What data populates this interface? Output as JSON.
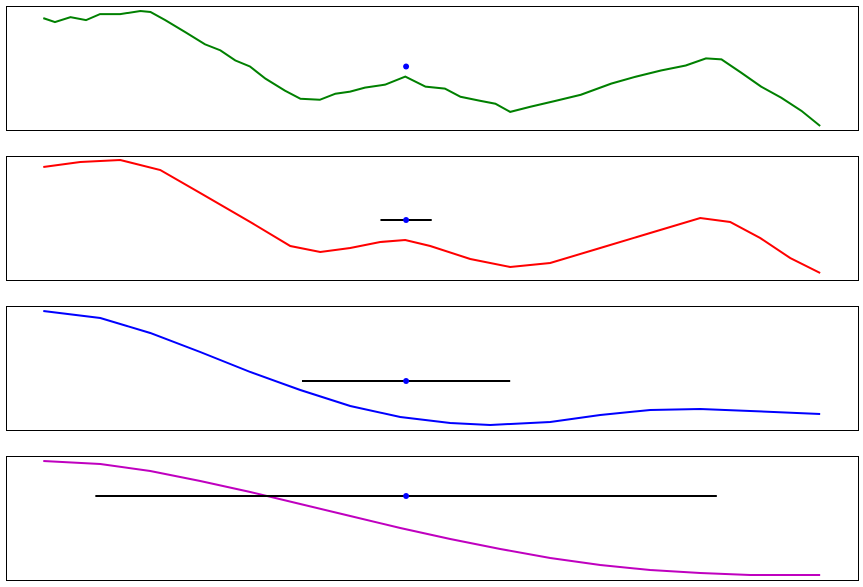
{
  "chart_data": [
    {
      "type": "line",
      "xlim": [
        -4.8,
        105
      ],
      "ylim": [
        0,
        10
      ],
      "x": [
        0,
        1.5,
        3.5,
        5.5,
        7.3,
        9.9,
        12.5,
        13.8,
        15.7,
        18.3,
        20.8,
        22.8,
        24.7,
        26.6,
        28.6,
        31.1,
        33.1,
        35.6,
        37.6,
        39.5,
        41.4,
        44.0,
        46.6,
        49.2,
        51.7,
        53.7,
        56.2,
        58.2,
        60.1,
        62.7,
        66.0,
        69.2,
        73.1,
        76.3,
        79.5,
        82.7,
        85.3,
        87.3,
        89.8,
        92.4,
        95.0,
        97.6,
        100
      ],
      "series": [
        {
          "color": "#008000",
          "values": [
            9.03,
            8.71,
            9.11,
            8.87,
            9.35,
            9.35,
            9.6,
            9.52,
            8.87,
            7.9,
            6.94,
            6.45,
            5.65,
            5.16,
            4.19,
            3.23,
            2.58,
            2.5,
            2.98,
            3.15,
            3.47,
            3.71,
            4.35,
            3.55,
            3.39,
            2.74,
            2.42,
            2.18,
            1.53,
            1.94,
            2.42,
            2.9,
            3.79,
            4.35,
            4.84,
            5.24,
            5.81,
            5.73,
            4.68,
            3.55,
            2.66,
            1.61,
            0.4
          ]
        }
      ],
      "errorbar": {
        "x": 46.7,
        "y": 5.16,
        "xerr": 0,
        "color": "#0000ff",
        "bar_color": "#000000"
      }
    },
    {
      "type": "line",
      "xlim": [
        -4.8,
        105
      ],
      "ylim": [
        0,
        10
      ],
      "x": [
        0,
        4.76,
        9.91,
        15.06,
        20.2,
        26.64,
        31.79,
        35.65,
        39.51,
        43.37,
        46.59,
        49.81,
        54.96,
        60.1,
        65.25,
        71.69,
        78.12,
        84.56,
        88.42,
        92.28,
        96.14,
        100
      ],
      "series": [
        {
          "color": "#ff0000",
          "values": [
            9.12,
            9.52,
            9.68,
            8.88,
            7.04,
            4.72,
            2.8,
            2.32,
            2.64,
            3.12,
            3.28,
            2.8,
            1.76,
            1.12,
            1.44,
            2.64,
            3.84,
            5.04,
            4.72,
            3.44,
            1.84,
            0.64
          ]
        }
      ],
      "errorbar": {
        "x": 46.7,
        "y": 4.88,
        "xerr": 3.3,
        "color": "#0000ff",
        "bar_color": "#000000"
      }
    },
    {
      "type": "line",
      "xlim": [
        -4.8,
        105
      ],
      "ylim": [
        0,
        10
      ],
      "x": [
        0,
        7.34,
        13.77,
        20.2,
        26.64,
        33.08,
        39.51,
        45.95,
        52.38,
        57.53,
        65.25,
        71.69,
        78.12,
        84.56,
        91.0,
        100
      ],
      "series": [
        {
          "color": "#0000ff",
          "values": [
            9.6,
            9.04,
            7.84,
            6.32,
            4.72,
            3.28,
            2.0,
            1.12,
            0.64,
            0.48,
            0.72,
            1.28,
            1.68,
            1.76,
            1.6,
            1.36
          ]
        }
      ],
      "errorbar": {
        "x": 46.7,
        "y": 4.0,
        "xerr": 13.4,
        "color": "#0000ff",
        "bar_color": "#000000"
      }
    },
    {
      "type": "line",
      "xlim": [
        -4.8,
        105
      ],
      "ylim": [
        0,
        10
      ],
      "x": [
        0,
        7.34,
        13.77,
        20.2,
        26.64,
        33.08,
        39.51,
        45.95,
        52.38,
        58.82,
        65.25,
        71.69,
        78.12,
        84.56,
        91.0,
        100
      ],
      "series": [
        {
          "color": "#bf00bf",
          "values": [
            9.6,
            9.36,
            8.8,
            8.0,
            7.12,
            6.16,
            5.2,
            4.24,
            3.36,
            2.56,
            1.84,
            1.28,
            0.88,
            0.64,
            0.48,
            0.48
          ]
        }
      ],
      "errorbar": {
        "x": 46.7,
        "y": 6.8,
        "xerr": 40,
        "color": "#0000ff",
        "bar_color": "#000000"
      }
    }
  ]
}
